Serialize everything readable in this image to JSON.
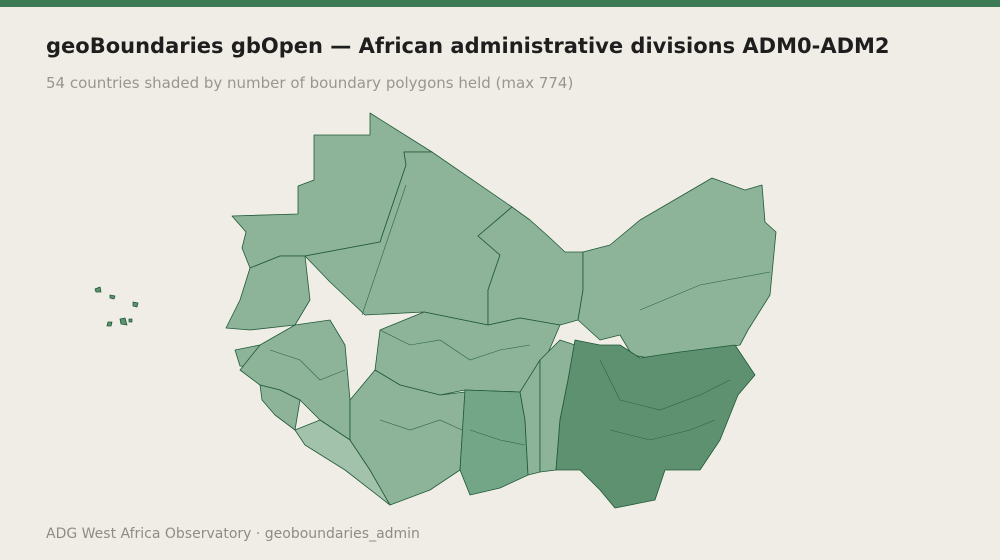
{
  "header": {
    "title": "geoBoundaries gbOpen — African administrative divisions ADM0-ADM2",
    "subtitle": "54 countries shaded by number of boundary polygons held (max 774)"
  },
  "footer": {
    "source": "ADG West Africa Observatory · geoboundaries_admin"
  }
}
